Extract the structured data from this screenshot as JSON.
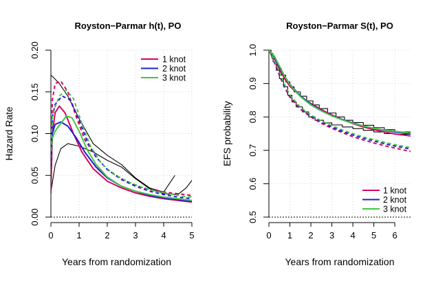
{
  "chart_data": [
    {
      "type": "line",
      "title": "Royston−Parmar h(t), PO",
      "xlabel": "Years from randomization",
      "ylabel": "Hazard Rate",
      "xlim": [
        0,
        5
      ],
      "ylim": [
        0,
        0.2
      ],
      "xticks": [
        0,
        1,
        2,
        3,
        4,
        5
      ],
      "yticks": [
        0.0,
        0.05,
        0.1,
        0.15,
        0.2
      ],
      "xtick_labels": [
        "0",
        "1",
        "2",
        "3",
        "4",
        "5"
      ],
      "ytick_labels": [
        "0.00",
        "0.05",
        "0.10",
        "0.15",
        "0.20"
      ],
      "grid": true,
      "legend_position": "top-right",
      "legend": [
        {
          "label": "1 knot",
          "color": "#d6005f"
        },
        {
          "label": "2 knot",
          "color": "#1c1cdb"
        },
        {
          "label": "3 knot",
          "color": "#42c542"
        }
      ],
      "series": [
        {
          "color": "#000000",
          "style": "solid",
          "x": [
            0,
            0.1,
            0.3,
            0.6,
            1.0,
            1.5,
            2.0,
            2.5,
            3.0,
            3.5,
            4.0,
            4.2,
            4.4
          ],
          "y": [
            0.17,
            0.167,
            0.16,
            0.145,
            0.118,
            0.088,
            0.074,
            0.063,
            0.047,
            0.035,
            0.03,
            0.04,
            0.05
          ]
        },
        {
          "color": "#000000",
          "style": "solid",
          "x": [
            0,
            0.15,
            0.35,
            0.6,
            1.0,
            1.5,
            2.0,
            2.5,
            3.0,
            3.5,
            4.0,
            4.5,
            4.8,
            5.0
          ],
          "y": [
            0.03,
            0.062,
            0.082,
            0.088,
            0.085,
            0.078,
            0.068,
            0.06,
            0.046,
            0.034,
            0.028,
            0.027,
            0.035,
            0.044
          ]
        },
        {
          "color": "#d6005f",
          "style": "solid",
          "x": [
            0,
            0.05,
            0.15,
            0.3,
            0.5,
            0.8,
            1.1,
            1.5,
            2.0,
            2.5,
            3.0,
            3.5,
            4.0,
            4.5,
            5.0
          ],
          "y": [
            0.028,
            0.1,
            0.125,
            0.133,
            0.125,
            0.1,
            0.078,
            0.058,
            0.043,
            0.035,
            0.029,
            0.025,
            0.022,
            0.02,
            0.018
          ]
        },
        {
          "color": "#1c1cdb",
          "style": "solid",
          "x": [
            0,
            0.05,
            0.15,
            0.35,
            0.6,
            0.9,
            1.2,
            1.6,
            2.0,
            2.5,
            3.0,
            3.5,
            4.0,
            4.5,
            5.0
          ],
          "y": [
            0.06,
            0.1,
            0.111,
            0.114,
            0.109,
            0.095,
            0.078,
            0.06,
            0.047,
            0.037,
            0.031,
            0.026,
            0.023,
            0.021,
            0.019
          ]
        },
        {
          "color": "#42c542",
          "style": "solid",
          "x": [
            0,
            0.05,
            0.15,
            0.3,
            0.55,
            0.75,
            1.0,
            1.3,
            1.6,
            2.0,
            2.5,
            3.0,
            3.5,
            4.0,
            4.5,
            5.0
          ],
          "y": [
            0.07,
            0.094,
            0.103,
            0.11,
            0.121,
            0.119,
            0.103,
            0.08,
            0.063,
            0.048,
            0.037,
            0.031,
            0.027,
            0.024,
            0.022,
            0.02
          ]
        },
        {
          "color": "#d6005f",
          "style": "dashed",
          "x": [
            0,
            0.05,
            0.15,
            0.35,
            0.6,
            0.9,
            1.2,
            1.6,
            2.0,
            2.5,
            3.0,
            3.5,
            4.0,
            4.5,
            5.0
          ],
          "y": [
            0.05,
            0.14,
            0.16,
            0.163,
            0.15,
            0.12,
            0.093,
            0.072,
            0.057,
            0.046,
            0.038,
            0.033,
            0.03,
            0.028,
            0.026
          ]
        },
        {
          "color": "#1c1cdb",
          "style": "dashed",
          "x": [
            0,
            0.05,
            0.15,
            0.4,
            0.7,
            1.0,
            1.3,
            1.6,
            2.0,
            2.5,
            3.0,
            3.5,
            4.0,
            4.5,
            5.0
          ],
          "y": [
            0.06,
            0.12,
            0.135,
            0.145,
            0.14,
            0.116,
            0.09,
            0.072,
            0.057,
            0.045,
            0.037,
            0.031,
            0.027,
            0.024,
            0.022
          ]
        },
        {
          "color": "#42c542",
          "style": "dashed",
          "x": [
            0,
            0.05,
            0.15,
            0.3,
            0.55,
            0.8,
            1.1,
            1.4,
            1.8,
            2.2,
            2.7,
            3.2,
            3.7,
            4.2,
            4.7,
            5.0
          ],
          "y": [
            0.08,
            0.12,
            0.132,
            0.145,
            0.152,
            0.142,
            0.112,
            0.085,
            0.064,
            0.052,
            0.043,
            0.036,
            0.031,
            0.028,
            0.025,
            0.024
          ]
        }
      ]
    },
    {
      "type": "line",
      "title": "Royston−Parmar S(t), PO",
      "xlabel": "Years from randomization",
      "ylabel": "EFS probability",
      "xlim": [
        0,
        6.75
      ],
      "ylim": [
        0.5,
        1.0
      ],
      "xticks": [
        0,
        1,
        2,
        3,
        4,
        5,
        6
      ],
      "yticks": [
        0.5,
        0.6,
        0.7,
        0.8,
        0.9,
        1.0
      ],
      "xtick_labels": [
        "0",
        "1",
        "2",
        "3",
        "4",
        "5",
        "6"
      ],
      "ytick_labels": [
        "0.5",
        "0.6",
        "0.7",
        "0.8",
        "0.9",
        "1.0"
      ],
      "grid": true,
      "legend_position": "bottom-right",
      "legend": [
        {
          "label": "1 knot",
          "color": "#d6005f"
        },
        {
          "label": "2 knot",
          "color": "#1c1cdb"
        },
        {
          "label": "3 knot",
          "color": "#42c542"
        }
      ],
      "series": [
        {
          "color": "#000000",
          "style": "step",
          "x": [
            0,
            0.1,
            0.2,
            0.3,
            0.45,
            0.6,
            0.8,
            1.0,
            1.2,
            1.5,
            1.8,
            2.1,
            2.4,
            2.8,
            3.2,
            3.6,
            4.0,
            4.5,
            5.0,
            5.5,
            6.0,
            6.75
          ],
          "y": [
            1.0,
            0.99,
            0.975,
            0.96,
            0.945,
            0.925,
            0.905,
            0.89,
            0.875,
            0.862,
            0.848,
            0.836,
            0.825,
            0.812,
            0.8,
            0.79,
            0.783,
            0.775,
            0.768,
            0.762,
            0.755,
            0.755
          ]
        },
        {
          "color": "#000000",
          "style": "step",
          "x": [
            0,
            0.1,
            0.2,
            0.35,
            0.5,
            0.7,
            0.9,
            1.1,
            1.3,
            1.6,
            1.9,
            2.2,
            2.6,
            3.0,
            3.5,
            4.0,
            4.5,
            5.0,
            5.5,
            6.0,
            6.75
          ],
          "y": [
            1.0,
            0.985,
            0.965,
            0.94,
            0.915,
            0.89,
            0.865,
            0.845,
            0.83,
            0.815,
            0.8,
            0.79,
            0.782,
            0.776,
            0.77,
            0.765,
            0.76,
            0.755,
            0.75,
            0.748,
            0.748
          ]
        },
        {
          "color": "#d6005f",
          "style": "solid",
          "x": [
            0,
            0.25,
            0.5,
            0.75,
            1.0,
            1.5,
            2.0,
            2.5,
            3.0,
            3.5,
            4.0,
            4.5,
            5.0,
            5.5,
            6.0,
            6.5,
            6.75
          ],
          "y": [
            1.0,
            0.975,
            0.943,
            0.915,
            0.892,
            0.862,
            0.84,
            0.822,
            0.806,
            0.792,
            0.78,
            0.77,
            0.762,
            0.755,
            0.749,
            0.745,
            0.743
          ]
        },
        {
          "color": "#1c1cdb",
          "style": "solid",
          "x": [
            0,
            0.25,
            0.5,
            0.75,
            1.0,
            1.5,
            2.0,
            2.5,
            3.0,
            3.5,
            4.0,
            4.5,
            5.0,
            5.5,
            6.0,
            6.5,
            6.75
          ],
          "y": [
            1.0,
            0.98,
            0.95,
            0.922,
            0.898,
            0.863,
            0.838,
            0.819,
            0.804,
            0.792,
            0.782,
            0.773,
            0.766,
            0.76,
            0.755,
            0.751,
            0.749
          ]
        },
        {
          "color": "#42c542",
          "style": "solid",
          "x": [
            0,
            0.25,
            0.5,
            0.75,
            1.0,
            1.5,
            2.0,
            2.5,
            3.0,
            3.5,
            4.0,
            4.5,
            5.0,
            5.5,
            6.0,
            6.5,
            6.75
          ],
          "y": [
            1.0,
            0.983,
            0.953,
            0.922,
            0.897,
            0.861,
            0.836,
            0.818,
            0.803,
            0.791,
            0.781,
            0.773,
            0.766,
            0.761,
            0.757,
            0.753,
            0.752
          ]
        },
        {
          "color": "#d6005f",
          "style": "dashed",
          "x": [
            0,
            0.25,
            0.5,
            0.75,
            1.0,
            1.5,
            2.0,
            2.5,
            3.0,
            3.5,
            4.0,
            4.5,
            5.0,
            5.5,
            6.0,
            6.5,
            6.75
          ],
          "y": [
            1.0,
            0.965,
            0.925,
            0.888,
            0.859,
            0.823,
            0.8,
            0.781,
            0.766,
            0.753,
            0.741,
            0.731,
            0.722,
            0.714,
            0.707,
            0.7,
            0.697
          ]
        },
        {
          "color": "#1c1cdb",
          "style": "dashed",
          "x": [
            0,
            0.25,
            0.5,
            0.75,
            1.0,
            1.5,
            2.0,
            2.5,
            3.0,
            3.5,
            4.0,
            4.5,
            5.0,
            5.5,
            6.0,
            6.5,
            6.75
          ],
          "y": [
            1.0,
            0.968,
            0.93,
            0.893,
            0.864,
            0.827,
            0.803,
            0.785,
            0.77,
            0.757,
            0.746,
            0.736,
            0.728,
            0.72,
            0.713,
            0.707,
            0.704
          ]
        },
        {
          "color": "#42c542",
          "style": "dashed",
          "x": [
            0,
            0.25,
            0.5,
            0.75,
            1.0,
            1.5,
            2.0,
            2.5,
            3.0,
            3.5,
            4.0,
            4.5,
            5.0,
            5.5,
            6.0,
            6.5,
            6.75
          ],
          "y": [
            1.0,
            0.972,
            0.935,
            0.897,
            0.866,
            0.829,
            0.806,
            0.788,
            0.774,
            0.761,
            0.75,
            0.74,
            0.732,
            0.724,
            0.717,
            0.711,
            0.708
          ]
        }
      ]
    }
  ]
}
